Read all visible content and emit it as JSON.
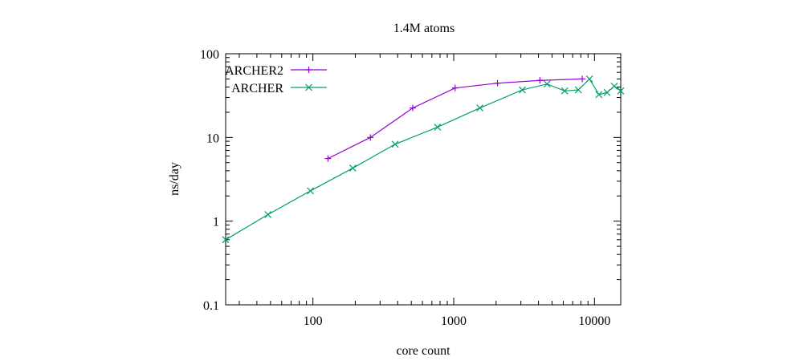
{
  "chart_data": {
    "type": "line",
    "title": "1.4M atoms",
    "xlabel": "core count",
    "ylabel": "ns/day",
    "xscale": "log",
    "yscale": "log",
    "xlim": [
      24,
      15360
    ],
    "ylim": [
      0.1,
      100
    ],
    "xticks": [
      {
        "value": 100,
        "label": "100"
      },
      {
        "value": 1000,
        "label": "1000"
      },
      {
        "value": 10000,
        "label": "10000"
      }
    ],
    "yticks": [
      {
        "value": 0.1,
        "label": "0.1"
      },
      {
        "value": 1,
        "label": "1"
      },
      {
        "value": 10,
        "label": "10"
      },
      {
        "value": 100,
        "label": "100"
      }
    ],
    "grid": false,
    "legend_position": "top-left",
    "series": [
      {
        "name": "ARCHER2",
        "color": "#9400d3",
        "marker": "plus",
        "x": [
          128,
          256,
          512,
          1024,
          2048,
          4096,
          8192
        ],
        "y": [
          5.6,
          10.0,
          22.5,
          39,
          44.5,
          48,
          50
        ]
      },
      {
        "name": "ARCHER",
        "color": "#009e73",
        "marker": "cross",
        "x": [
          24,
          48,
          96,
          192,
          384,
          768,
          1536,
          3072,
          4608,
          6144,
          7680,
          9216,
          10752,
          12288,
          13824,
          15360
        ],
        "y": [
          0.6,
          1.2,
          2.3,
          4.3,
          8.3,
          13.3,
          22.5,
          37,
          43.5,
          36,
          37,
          50,
          32.5,
          34.5,
          41,
          36
        ]
      }
    ]
  }
}
